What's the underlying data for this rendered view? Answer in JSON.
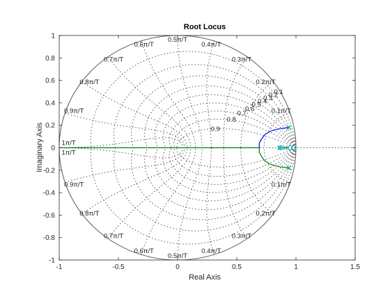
{
  "chart_data": {
    "type": "line",
    "title": "Root Locus",
    "xlabel": "Real Axis",
    "ylabel": "Imaginary Axis",
    "xlim": [
      -1,
      1.5
    ],
    "ylim": [
      -1,
      1
    ],
    "xticks": [
      "-1",
      "-0.5",
      "0",
      "0.5",
      "1",
      "1.5"
    ],
    "yticks": [
      "-1",
      "-0.8",
      "-0.6",
      "-0.4",
      "-0.2",
      "0",
      "0.2",
      "0.4",
      "0.6",
      "0.8",
      "1"
    ],
    "grid": "zgrid",
    "damping_labels": [
      "0.1",
      "0.2",
      "0.3",
      "0.4",
      "0.5",
      "0.6",
      "0.7",
      "0.8",
      "0.9"
    ],
    "frequency_labels": [
      "0.1π/T",
      "0.2π/T",
      "0.3π/T",
      "0.4π/T",
      "0.5π/T",
      "0.6π/T",
      "0.7π/T",
      "0.8π/T",
      "0.9π/T",
      "1π/T"
    ],
    "series": [
      {
        "color": "#0000ff",
        "points": [
          [
            0.94,
            0.18
          ],
          [
            0.86,
            0.17
          ],
          [
            0.79,
            0.15
          ],
          [
            0.74,
            0.12
          ],
          [
            0.71,
            0.08
          ],
          [
            0.69,
            0.04
          ],
          [
            0.69,
            0.0
          ]
        ]
      },
      {
        "color": "#008000",
        "points": [
          [
            0.94,
            -0.18
          ],
          [
            0.86,
            -0.17
          ],
          [
            0.79,
            -0.15
          ],
          [
            0.74,
            -0.12
          ],
          [
            0.71,
            -0.08
          ],
          [
            0.69,
            -0.04
          ],
          [
            0.69,
            0.0
          ]
        ]
      },
      {
        "color": "#008000",
        "points": [
          [
            0.69,
            0.0
          ],
          [
            0.4,
            0.0
          ],
          [
            0.0,
            0.0
          ],
          [
            -0.4,
            0.0
          ],
          [
            -0.8,
            0.0
          ],
          [
            -1.0,
            0.0
          ]
        ]
      },
      {
        "color": "#d40000",
        "points": [
          [
            0.86,
            0.0
          ],
          [
            0.94,
            0.0
          ]
        ]
      },
      {
        "color": "#00aaaa",
        "points": [
          [
            0.87,
            0.0
          ],
          [
            0.91,
            0.0
          ]
        ]
      }
    ],
    "poles": [
      [
        0.94,
        0.18
      ],
      [
        0.94,
        -0.18
      ],
      [
        0.86,
        0.0
      ],
      [
        0.91,
        0.0
      ]
    ],
    "zeros": [
      [
        0.87,
        0.0
      ],
      [
        0.95,
        0.0
      ],
      [
        0.98,
        0.0
      ]
    ],
    "colors": {
      "blue": "#0000ff",
      "green": "#008000",
      "red": "#d40000",
      "cyan": "#00aaaa",
      "grid": "#555555"
    }
  }
}
